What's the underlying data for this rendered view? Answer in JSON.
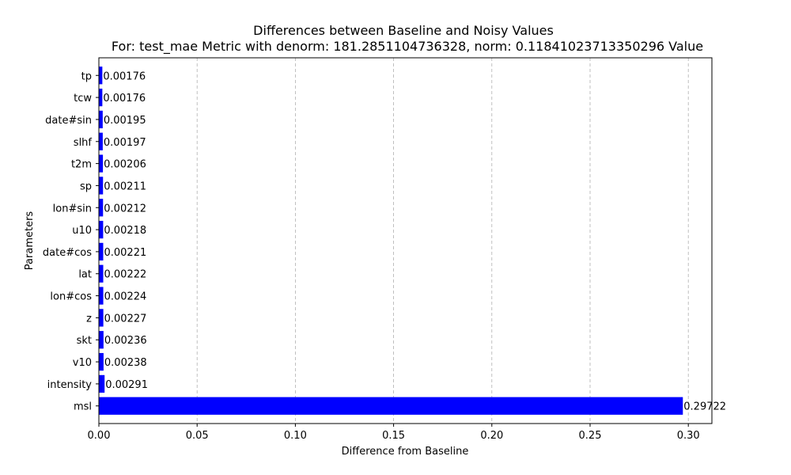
{
  "chart_data": {
    "type": "bar",
    "orientation": "horizontal",
    "title": "Differences between Baseline and Noisy Values",
    "subtitle": "For: test_mae Metric with denorm: 181.2851104736328, norm: 0.11841023713350296 Value",
    "xlabel": "Difference from Baseline",
    "ylabel": "Parameters",
    "categories": [
      "msl",
      "intensity",
      "v10",
      "skt",
      "z",
      "lon#cos",
      "lat",
      "date#cos",
      "u10",
      "lon#sin",
      "sp",
      "t2m",
      "slhf",
      "date#sin",
      "tcw",
      "tp"
    ],
    "values": [
      0.29722,
      0.00291,
      0.00238,
      0.00236,
      0.00227,
      0.00224,
      0.00222,
      0.00221,
      0.00218,
      0.00212,
      0.00211,
      0.00206,
      0.00197,
      0.00195,
      0.00176,
      0.00176
    ],
    "value_labels": [
      "0.29722",
      "0.00291",
      "0.00238",
      "0.00236",
      "0.00227",
      "0.00224",
      "0.00222",
      "0.00221",
      "0.00218",
      "0.00212",
      "0.00211",
      "0.00206",
      "0.00197",
      "0.00195",
      "0.00176",
      "0.00176"
    ],
    "xlim": [
      0,
      0.312
    ],
    "xticks": [
      0.0,
      0.05,
      0.1,
      0.15,
      0.2,
      0.25,
      0.3
    ],
    "xtick_labels": [
      "0.00",
      "0.05",
      "0.10",
      "0.15",
      "0.20",
      "0.25",
      "0.30"
    ],
    "grid": {
      "x": true,
      "y": false,
      "style": "dashed"
    },
    "bar_color": "#0000ff",
    "legend": null
  }
}
